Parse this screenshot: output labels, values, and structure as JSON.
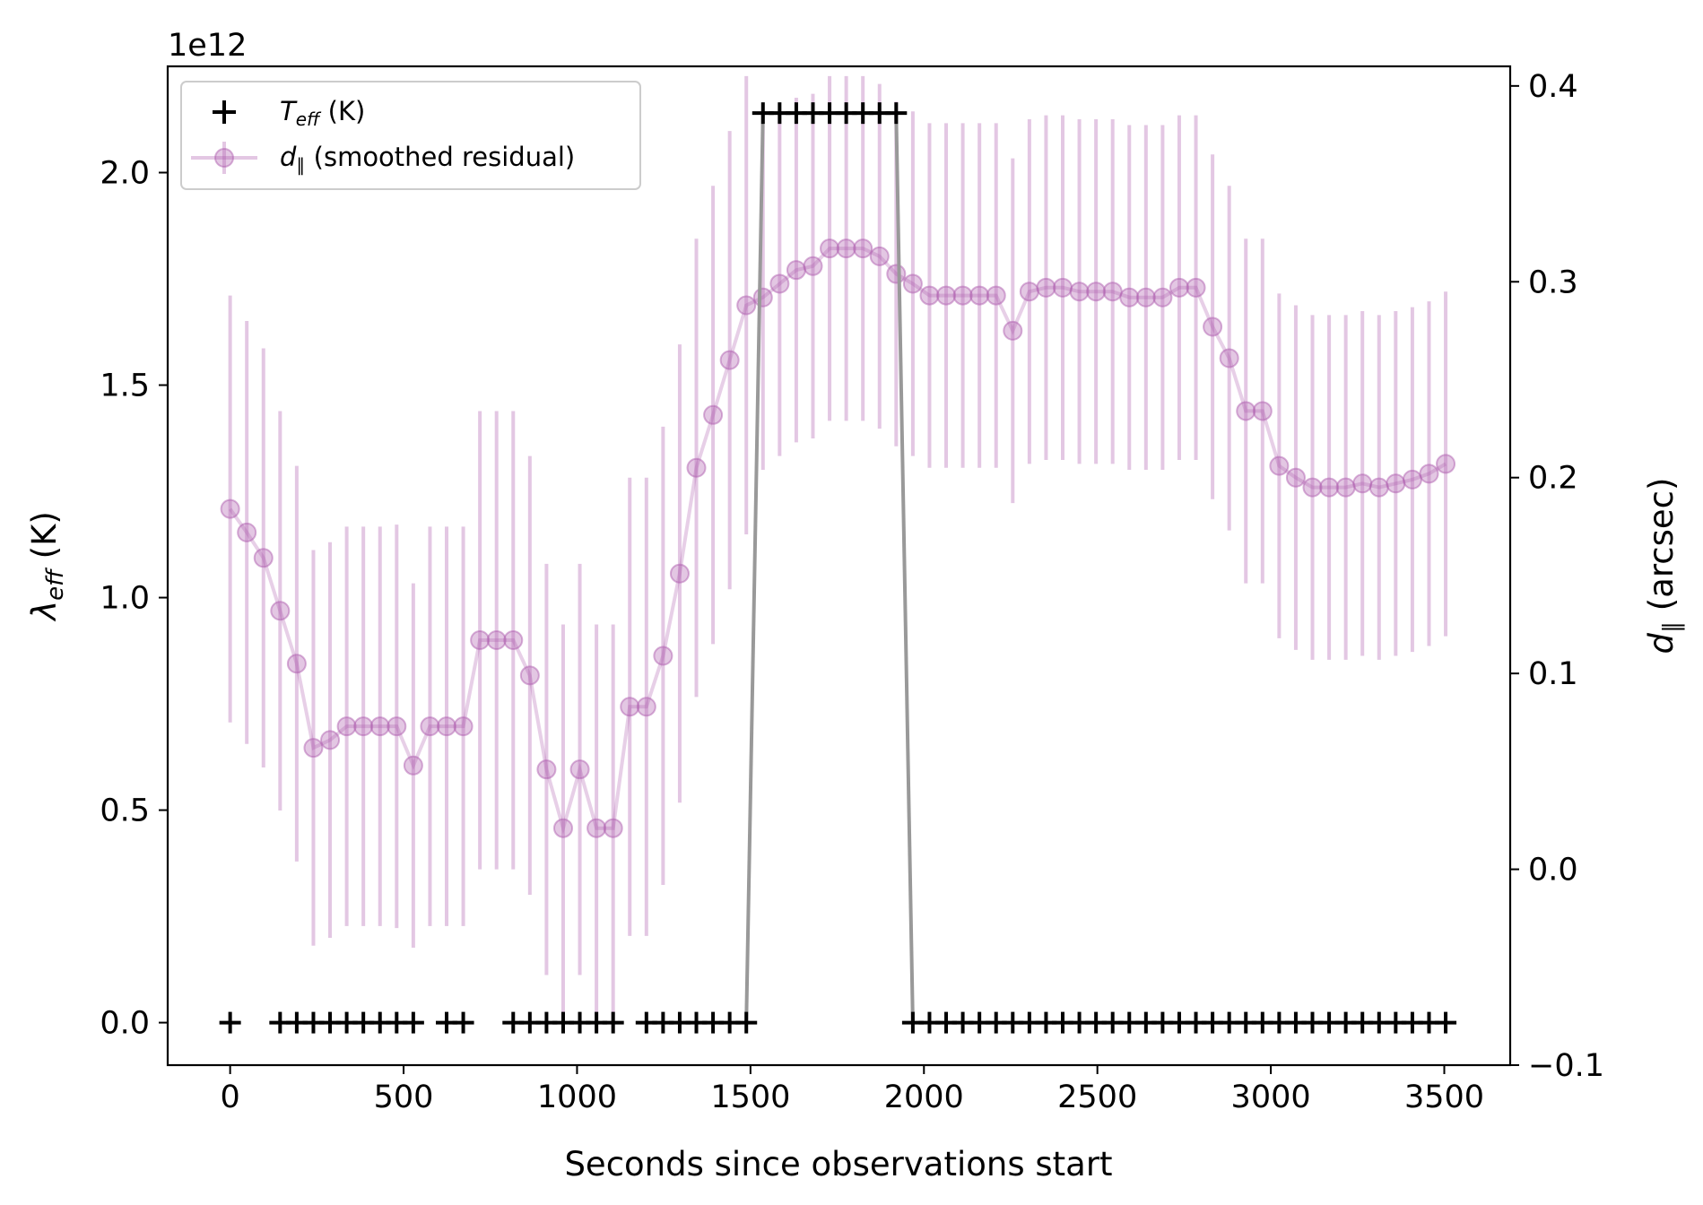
{
  "chart_data": {
    "type": "scatter",
    "xlabel": "Seconds since observations start",
    "ylabel_left": {
      "symbol": "λ",
      "sub": "eff",
      "unit": " (K)"
    },
    "ylabel_right": {
      "symbol": "d",
      "sub": "∥",
      "unit": " (arcsec)"
    },
    "left_multiplier": "1e12",
    "xlim": [
      -180,
      3690
    ],
    "ylim_left": [
      -100000000000.0,
      2250000000000.0
    ],
    "ylim_right": [
      -0.1,
      0.41
    ],
    "x_ticks": [
      0,
      500,
      1000,
      1500,
      2000,
      2500,
      3000,
      3500
    ],
    "x_tick_labels": [
      "0",
      "500",
      "1000",
      "1500",
      "2000",
      "2500",
      "3000",
      "3500"
    ],
    "left_ticks": [
      0,
      500000000000.0,
      1000000000000.0,
      1500000000000.0,
      2000000000000.0
    ],
    "left_tick_labels": [
      "0.0",
      "0.5",
      "1.0",
      "1.5",
      "2.0"
    ],
    "right_ticks": [
      -0.1,
      0.0,
      0.1,
      0.2,
      0.3,
      0.4
    ],
    "right_tick_labels": [
      "−0.1",
      "0.0",
      "0.1",
      "0.2",
      "0.3",
      "0.4"
    ],
    "legend_position": "upper-left",
    "series": [
      {
        "name": {
          "symbol": "T",
          "sub": "eff",
          "unit": " (K)"
        },
        "axis": "left",
        "marker": "plus",
        "color": "#000000",
        "line_color": "#999999",
        "x": [
          0,
          144,
          192,
          240,
          288,
          336,
          384,
          432,
          480,
          528,
          624,
          672,
          816,
          864,
          912,
          960,
          1008,
          1056,
          1104,
          1200,
          1248,
          1296,
          1344,
          1392,
          1440,
          1488,
          1536,
          1584,
          1632,
          1680,
          1728,
          1776,
          1824,
          1872,
          1920,
          1968,
          2016,
          2064,
          2112,
          2160,
          2208,
          2256,
          2304,
          2352,
          2400,
          2448,
          2496,
          2544,
          2592,
          2640,
          2688,
          2736,
          2784,
          2832,
          2880,
          2928,
          2976,
          3024,
          3072,
          3120,
          3168,
          3216,
          3264,
          3312,
          3360,
          3408,
          3456,
          3504
        ],
        "y": [
          0,
          0,
          0,
          0,
          0,
          0,
          0,
          0,
          0,
          0,
          0,
          0,
          0,
          0,
          0,
          0,
          0,
          0,
          0,
          0,
          0,
          0,
          0,
          0,
          0,
          0,
          2140000000000.0,
          2140000000000.0,
          2140000000000.0,
          2140000000000.0,
          2140000000000.0,
          2140000000000.0,
          2140000000000.0,
          2140000000000.0,
          2140000000000.0,
          0,
          0,
          0,
          0,
          0,
          0,
          0,
          0,
          0,
          0,
          0,
          0,
          0,
          0,
          0,
          0,
          0,
          0,
          0,
          0,
          0,
          0,
          0,
          0,
          0,
          0,
          0,
          0,
          0,
          0,
          0,
          0,
          0
        ]
      },
      {
        "name": {
          "symbol": "d",
          "sub": "∥",
          "unit": " (smoothed residual)"
        },
        "axis": "right",
        "marker": "circle",
        "color": "#b05fb0",
        "x": [
          0,
          48,
          96,
          144,
          192,
          240,
          288,
          336,
          384,
          432,
          480,
          528,
          576,
          624,
          672,
          720,
          768,
          816,
          864,
          912,
          960,
          1008,
          1056,
          1104,
          1152,
          1200,
          1248,
          1296,
          1344,
          1392,
          1440,
          1488,
          1536,
          1584,
          1632,
          1680,
          1728,
          1776,
          1824,
          1872,
          1920,
          1968,
          2016,
          2064,
          2112,
          2160,
          2208,
          2256,
          2304,
          2352,
          2400,
          2448,
          2496,
          2544,
          2592,
          2640,
          2688,
          2736,
          2784,
          2832,
          2880,
          2928,
          2976,
          3024,
          3072,
          3120,
          3168,
          3216,
          3264,
          3312,
          3360,
          3408,
          3456,
          3504
        ],
        "y": [
          0.184,
          0.172,
          0.159,
          0.132,
          0.105,
          0.062,
          0.066,
          0.073,
          0.073,
          0.073,
          0.073,
          0.053,
          0.073,
          0.073,
          0.073,
          0.117,
          0.117,
          0.117,
          0.099,
          0.051,
          0.021,
          0.051,
          0.021,
          0.021,
          0.083,
          0.083,
          0.109,
          0.151,
          0.205,
          0.232,
          0.26,
          0.288,
          0.292,
          0.299,
          0.306,
          0.308,
          0.317,
          0.317,
          0.317,
          0.313,
          0.304,
          0.299,
          0.293,
          0.293,
          0.293,
          0.293,
          0.293,
          0.275,
          0.295,
          0.297,
          0.297,
          0.295,
          0.295,
          0.295,
          0.292,
          0.292,
          0.292,
          0.297,
          0.297,
          0.277,
          0.261,
          0.234,
          0.234,
          0.206,
          0.2,
          0.195,
          0.195,
          0.195,
          0.197,
          0.195,
          0.197,
          0.199,
          0.202,
          0.207
        ],
        "err": [
          0.109,
          0.108,
          0.107,
          0.102,
          0.101,
          0.101,
          0.101,
          0.102,
          0.102,
          0.102,
          0.103,
          0.093,
          0.102,
          0.102,
          0.102,
          0.117,
          0.117,
          0.117,
          0.112,
          0.105,
          0.104,
          0.105,
          0.104,
          0.104,
          0.117,
          0.117,
          0.117,
          0.117,
          0.117,
          0.117,
          0.117,
          0.117,
          0.088,
          0.088,
          0.088,
          0.088,
          0.088,
          0.088,
          0.088,
          0.088,
          0.088,
          0.088,
          0.088,
          0.088,
          0.088,
          0.088,
          0.088,
          0.088,
          0.088,
          0.088,
          0.088,
          0.088,
          0.088,
          0.088,
          0.088,
          0.088,
          0.088,
          0.088,
          0.088,
          0.088,
          0.088,
          0.088,
          0.088,
          0.088,
          0.088,
          0.088,
          0.088,
          0.088,
          0.088,
          0.088,
          0.088,
          0.088,
          0.088,
          0.088
        ]
      }
    ]
  }
}
